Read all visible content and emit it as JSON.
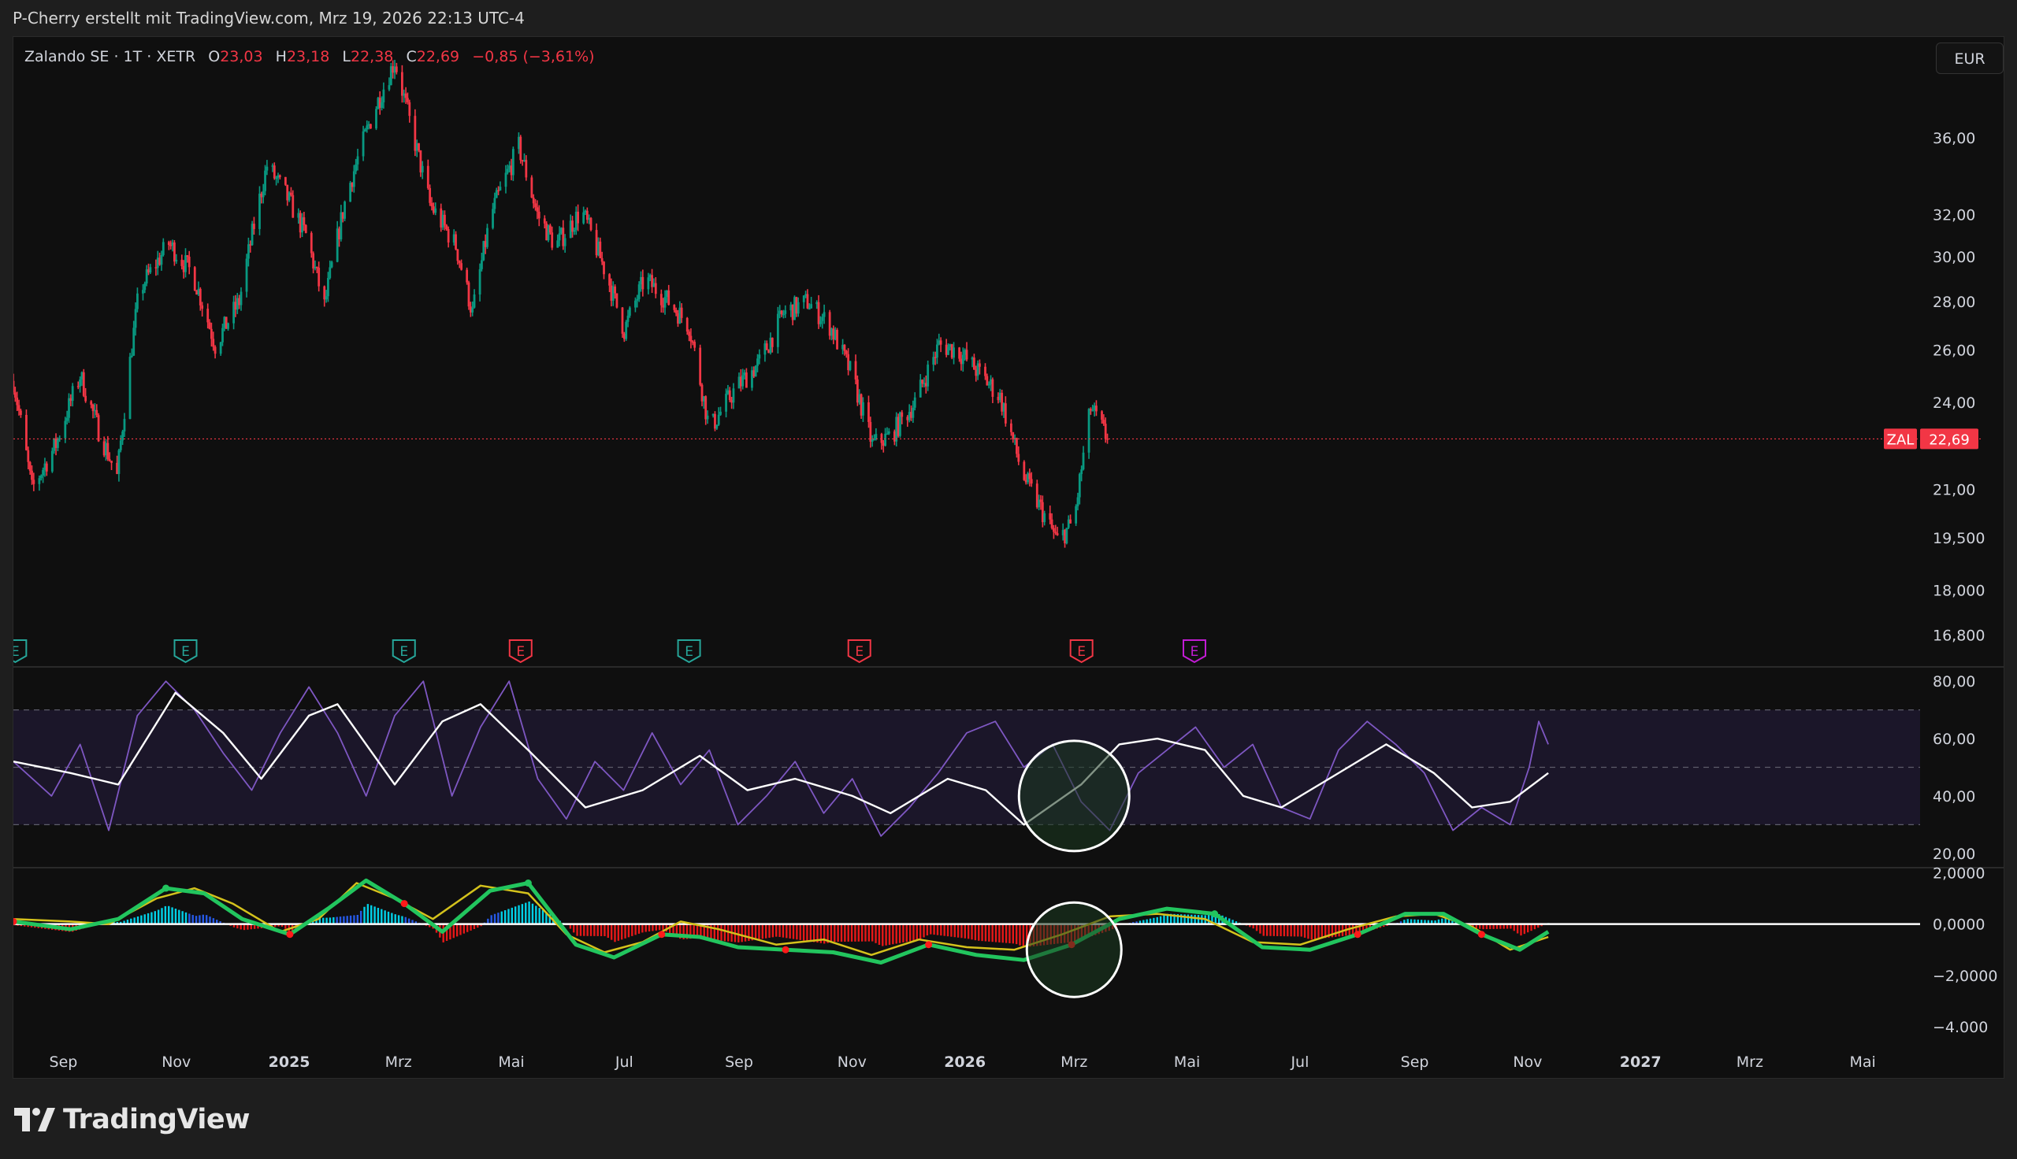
{
  "header": {
    "credit": "P-Cherry erstellt mit TradingView.com, Mrz 19, 2026 22:13 UTC-4"
  },
  "legend": {
    "symbol": "Zalando SE · 1T · XETR",
    "open_label": "O",
    "open": "23,03",
    "high_label": "H",
    "high": "23,18",
    "low_label": "L",
    "low": "22,38",
    "close_label": "C",
    "close": "22,69",
    "change": "−0,85 (−3,61%)"
  },
  "currency": "EUR",
  "price_tag": {
    "ticker": "ZAL",
    "price": "22,69"
  },
  "footer": {
    "brand": "TradingView"
  },
  "colors": {
    "background": "#0f0f0f",
    "up": "#089981",
    "down": "#f23645",
    "rsi_line": "#7e57c2",
    "rsi_band": "#1b1629",
    "signal_green": "#22c55e",
    "signal_red": "#ff1a1a",
    "signal_yellow": "#d4c21c",
    "hist_cyan": "#00e5ff",
    "hist_blue": "#2962ff",
    "earnings_green": "#26a69a",
    "earnings_red": "#f23645",
    "earnings_purple": "#c21cd4"
  },
  "chart_data": [
    {
      "type": "candlestick",
      "panel": "price",
      "y_scale": "log",
      "ylim": [
        16.0,
        42.0
      ],
      "y_ticks": [
        "36,00",
        "32,00",
        "30,00",
        "28,00",
        "26,00",
        "24,00",
        "21,00",
        "19,500",
        "18,000",
        "16,800"
      ],
      "y_tick_values": [
        36,
        32,
        30,
        28,
        26,
        24,
        21,
        19.5,
        18,
        16.8
      ],
      "x_ticks": [
        "Sep",
        "Nov",
        "2025",
        "Mrz",
        "Mai",
        "Jul",
        "Sep",
        "Nov",
        "2026",
        "Mrz",
        "Mai",
        "Jul",
        "Sep",
        "Nov",
        "2027",
        "Mrz",
        "Mai"
      ],
      "x_tick_dates": [
        "2024-09-01",
        "2024-11-01",
        "2025-01-01",
        "2025-03-01",
        "2025-05-01",
        "2025-07-01",
        "2025-09-01",
        "2025-11-01",
        "2026-01-01",
        "2026-03-01",
        "2026-05-01",
        "2026-07-01",
        "2026-09-01",
        "2026-11-01",
        "2027-01-01",
        "2027-03-01",
        "2027-05-01"
      ],
      "x_range": [
        "2024-08-05",
        "2027-06-01"
      ],
      "last_close": 22.69,
      "close_path": [
        {
          "date": "2024-08-05",
          "close": 24.8
        },
        {
          "date": "2024-08-15",
          "close": 21.0
        },
        {
          "date": "2024-08-28",
          "close": 22.5
        },
        {
          "date": "2024-09-10",
          "close": 25.0
        },
        {
          "date": "2024-09-20",
          "close": 23.0
        },
        {
          "date": "2024-09-30",
          "close": 21.4
        },
        {
          "date": "2024-10-12",
          "close": 28.5
        },
        {
          "date": "2024-10-28",
          "close": 30.6
        },
        {
          "date": "2024-11-10",
          "close": 29.2
        },
        {
          "date": "2024-11-22",
          "close": 26.2
        },
        {
          "date": "2024-12-05",
          "close": 28.0
        },
        {
          "date": "2024-12-20",
          "close": 34.5
        },
        {
          "date": "2024-12-30",
          "close": 33.0
        },
        {
          "date": "2025-01-10",
          "close": 31.0
        },
        {
          "date": "2025-01-20",
          "close": 27.8
        },
        {
          "date": "2025-02-01",
          "close": 33.0
        },
        {
          "date": "2025-02-14",
          "close": 37.0
        },
        {
          "date": "2025-02-27",
          "close": 40.5
        },
        {
          "date": "2025-03-08",
          "close": 36.5
        },
        {
          "date": "2025-03-18",
          "close": 32.5
        },
        {
          "date": "2025-04-01",
          "close": 30.5
        },
        {
          "date": "2025-04-10",
          "close": 27.5
        },
        {
          "date": "2025-04-20",
          "close": 32.0
        },
        {
          "date": "2025-05-05",
          "close": 35.5
        },
        {
          "date": "2025-05-15",
          "close": 32.0
        },
        {
          "date": "2025-05-25",
          "close": 30.5
        },
        {
          "date": "2025-06-08",
          "close": 32.2
        },
        {
          "date": "2025-06-20",
          "close": 29.5
        },
        {
          "date": "2025-07-01",
          "close": 26.8
        },
        {
          "date": "2025-07-12",
          "close": 29.0
        },
        {
          "date": "2025-07-25",
          "close": 28.0
        },
        {
          "date": "2025-08-05",
          "close": 27.0
        },
        {
          "date": "2025-08-16",
          "close": 23.0
        },
        {
          "date": "2025-08-30",
          "close": 24.5
        },
        {
          "date": "2025-09-12",
          "close": 25.5
        },
        {
          "date": "2025-09-25",
          "close": 27.5
        },
        {
          "date": "2025-10-08",
          "close": 28.0
        },
        {
          "date": "2025-10-20",
          "close": 27.0
        },
        {
          "date": "2025-11-01",
          "close": 25.0
        },
        {
          "date": "2025-11-12",
          "close": 22.5
        },
        {
          "date": "2025-11-22",
          "close": 22.8
        },
        {
          "date": "2025-12-05",
          "close": 24.0
        },
        {
          "date": "2025-12-18",
          "close": 26.2
        },
        {
          "date": "2025-12-28",
          "close": 26.0
        },
        {
          "date": "2026-01-10",
          "close": 25.0
        },
        {
          "date": "2026-01-20",
          "close": 24.2
        },
        {
          "date": "2026-02-01",
          "close": 21.5
        },
        {
          "date": "2026-02-10",
          "close": 20.5
        },
        {
          "date": "2026-02-20",
          "close": 19.4
        },
        {
          "date": "2026-03-01",
          "close": 20.0
        },
        {
          "date": "2026-03-10",
          "close": 23.8
        },
        {
          "date": "2026-03-19",
          "close": 22.69
        }
      ],
      "earnings_markers": [
        {
          "date": "2024-08-06",
          "tone": "up",
          "label": "E"
        },
        {
          "date": "2024-11-06",
          "tone": "up",
          "label": "E"
        },
        {
          "date": "2025-03-04",
          "tone": "up",
          "label": "E"
        },
        {
          "date": "2025-05-06",
          "tone": "down",
          "label": "E"
        },
        {
          "date": "2025-08-05",
          "tone": "up",
          "label": "E"
        },
        {
          "date": "2025-11-05",
          "tone": "down",
          "label": "E"
        },
        {
          "date": "2026-03-05",
          "tone": "down",
          "label": "E"
        },
        {
          "date": "2026-05-05",
          "tone": "purple",
          "label": "E"
        }
      ]
    },
    {
      "type": "line",
      "panel": "rsi",
      "ylim": [
        15,
        85
      ],
      "y_ticks": [
        "80,00",
        "60,00",
        "40,00",
        "20,00"
      ],
      "y_tick_values": [
        80,
        60,
        40,
        20
      ],
      "bands": [
        70,
        50,
        30
      ],
      "highlight_circle": {
        "date": "2026-03-01",
        "value": 40
      },
      "series": [
        {
          "color": "#7e57c2",
          "points": [
            [
              0.0,
              52
            ],
            [
              0.02,
              40
            ],
            [
              0.035,
              58
            ],
            [
              0.05,
              28
            ],
            [
              0.065,
              68
            ],
            [
              0.08,
              80
            ],
            [
              0.095,
              70
            ],
            [
              0.11,
              55
            ],
            [
              0.125,
              42
            ],
            [
              0.14,
              62
            ],
            [
              0.155,
              78
            ],
            [
              0.17,
              62
            ],
            [
              0.185,
              40
            ],
            [
              0.2,
              68
            ],
            [
              0.215,
              80
            ],
            [
              0.23,
              40
            ],
            [
              0.245,
              64
            ],
            [
              0.26,
              80
            ],
            [
              0.275,
              46
            ],
            [
              0.29,
              32
            ],
            [
              0.305,
              52
            ],
            [
              0.32,
              42
            ],
            [
              0.335,
              62
            ],
            [
              0.35,
              44
            ],
            [
              0.365,
              56
            ],
            [
              0.38,
              30
            ],
            [
              0.395,
              40
            ],
            [
              0.41,
              52
            ],
            [
              0.425,
              34
            ],
            [
              0.44,
              46
            ],
            [
              0.455,
              26
            ],
            [
              0.47,
              36
            ],
            [
              0.485,
              48
            ],
            [
              0.5,
              62
            ],
            [
              0.515,
              66
            ],
            [
              0.53,
              50
            ],
            [
              0.545,
              58
            ],
            [
              0.56,
              38
            ],
            [
              0.575,
              28
            ],
            [
              0.59,
              48
            ],
            [
              0.605,
              56
            ],
            [
              0.62,
              64
            ],
            [
              0.635,
              50
            ],
            [
              0.65,
              58
            ],
            [
              0.665,
              36
            ],
            [
              0.68,
              32
            ],
            [
              0.695,
              56
            ],
            [
              0.71,
              66
            ],
            [
              0.725,
              58
            ],
            [
              0.74,
              48
            ],
            [
              0.755,
              28
            ],
            [
              0.77,
              36
            ],
            [
              0.785,
              30
            ],
            [
              0.795,
              50
            ],
            [
              0.8,
              66
            ],
            [
              0.805,
              58
            ]
          ]
        },
        {
          "color": "#ffffff",
          "points": [
            [
              0.0,
              52
            ],
            [
              0.03,
              48
            ],
            [
              0.055,
              44
            ],
            [
              0.085,
              76
            ],
            [
              0.11,
              62
            ],
            [
              0.13,
              46
            ],
            [
              0.155,
              68
            ],
            [
              0.17,
              72
            ],
            [
              0.2,
              44
            ],
            [
              0.225,
              66
            ],
            [
              0.245,
              72
            ],
            [
              0.27,
              56
            ],
            [
              0.3,
              36
            ],
            [
              0.33,
              42
            ],
            [
              0.36,
              54
            ],
            [
              0.385,
              42
            ],
            [
              0.41,
              46
            ],
            [
              0.44,
              40
            ],
            [
              0.46,
              34
            ],
            [
              0.49,
              46
            ],
            [
              0.51,
              42
            ],
            [
              0.53,
              30
            ],
            [
              0.56,
              44
            ],
            [
              0.58,
              58
            ],
            [
              0.6,
              60
            ],
            [
              0.625,
              56
            ],
            [
              0.645,
              40
            ],
            [
              0.665,
              36
            ],
            [
              0.69,
              46
            ],
            [
              0.72,
              58
            ],
            [
              0.745,
              48
            ],
            [
              0.765,
              36
            ],
            [
              0.785,
              38
            ],
            [
              0.805,
              48
            ]
          ]
        }
      ]
    },
    {
      "type": "line",
      "panel": "oscillator",
      "ylim": [
        -4.4,
        2.2
      ],
      "y_ticks": [
        "2,0000",
        "0,0000",
        "−2,0000",
        "−4.000"
      ],
      "y_tick_values": [
        2,
        0,
        -2,
        -4
      ],
      "zero_line": 0,
      "highlight_circle": {
        "date": "2026-03-01",
        "value": -1.0
      },
      "series": [
        {
          "color": "#d4c21c",
          "points": [
            [
              0.0,
              0.2
            ],
            [
              0.03,
              0.1
            ],
            [
              0.05,
              0.0
            ],
            [
              0.075,
              1.0
            ],
            [
              0.095,
              1.4
            ],
            [
              0.115,
              0.8
            ],
            [
              0.14,
              -0.3
            ],
            [
              0.16,
              0.2
            ],
            [
              0.18,
              1.6
            ],
            [
              0.2,
              1.0
            ],
            [
              0.22,
              0.2
            ],
            [
              0.245,
              1.5
            ],
            [
              0.27,
              1.2
            ],
            [
              0.29,
              -0.4
            ],
            [
              0.31,
              -1.1
            ],
            [
              0.33,
              -0.7
            ],
            [
              0.35,
              0.1
            ],
            [
              0.37,
              -0.2
            ],
            [
              0.4,
              -0.8
            ],
            [
              0.425,
              -0.6
            ],
            [
              0.45,
              -1.2
            ],
            [
              0.475,
              -0.6
            ],
            [
              0.5,
              -0.9
            ],
            [
              0.525,
              -1.0
            ],
            [
              0.55,
              -0.4
            ],
            [
              0.575,
              0.3
            ],
            [
              0.6,
              0.4
            ],
            [
              0.625,
              0.2
            ],
            [
              0.65,
              -0.7
            ],
            [
              0.675,
              -0.8
            ],
            [
              0.7,
              -0.2
            ],
            [
              0.725,
              0.3
            ],
            [
              0.745,
              0.4
            ],
            [
              0.765,
              -0.1
            ],
            [
              0.785,
              -1.0
            ],
            [
              0.805,
              -0.5
            ]
          ]
        },
        {
          "color": "#22c55e",
          "points": [
            [
              0.0,
              0.1
            ],
            [
              0.03,
              -0.2
            ],
            [
              0.055,
              0.2
            ],
            [
              0.08,
              1.4
            ],
            [
              0.1,
              1.2
            ],
            [
              0.12,
              0.2
            ],
            [
              0.145,
              -0.4
            ],
            [
              0.165,
              0.6
            ],
            [
              0.185,
              1.7
            ],
            [
              0.205,
              0.8
            ],
            [
              0.225,
              -0.3
            ],
            [
              0.25,
              1.3
            ],
            [
              0.27,
              1.6
            ],
            [
              0.295,
              -0.8
            ],
            [
              0.315,
              -1.3
            ],
            [
              0.34,
              -0.4
            ],
            [
              0.36,
              -0.5
            ],
            [
              0.38,
              -0.9
            ],
            [
              0.405,
              -1.0
            ],
            [
              0.43,
              -1.1
            ],
            [
              0.455,
              -1.5
            ],
            [
              0.48,
              -0.8
            ],
            [
              0.505,
              -1.2
            ],
            [
              0.53,
              -1.4
            ],
            [
              0.555,
              -0.8
            ],
            [
              0.58,
              0.2
            ],
            [
              0.605,
              0.6
            ],
            [
              0.63,
              0.4
            ],
            [
              0.655,
              -0.9
            ],
            [
              0.68,
              -1.0
            ],
            [
              0.705,
              -0.4
            ],
            [
              0.73,
              0.4
            ],
            [
              0.75,
              0.4
            ],
            [
              0.77,
              -0.4
            ],
            [
              0.79,
              -1.0
            ],
            [
              0.805,
              -0.3
            ]
          ]
        }
      ]
    }
  ]
}
